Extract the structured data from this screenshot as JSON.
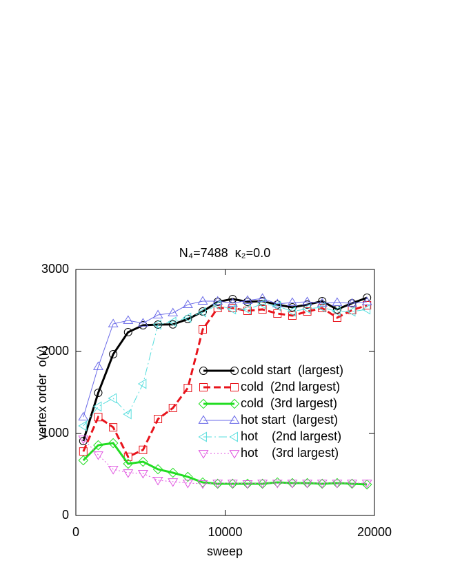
{
  "chart_data": {
    "type": "line",
    "title": "N₄=7488  κ₂=0.0",
    "xlabel": "sweep",
    "ylabel": "vertex order  o(v)",
    "x": [
      500,
      1500,
      2500,
      3500,
      4500,
      5500,
      6500,
      7500,
      8500,
      9500,
      10500,
      11500,
      12500,
      13500,
      14500,
      15500,
      16500,
      17500,
      18500,
      19500
    ],
    "xlim": [
      0,
      20000
    ],
    "xticks": [
      0,
      10000,
      20000
    ],
    "ylim": [
      0,
      3000
    ],
    "yticks": [
      0,
      1000,
      2000,
      3000
    ],
    "series": [
      {
        "name": "cold start  (largest)",
        "color": "#000000",
        "marker": "circle",
        "linestyle": "solid",
        "linewidth": 3,
        "values": [
          908,
          1496,
          1966,
          2235,
          2319,
          2328,
          2330,
          2395,
          2487,
          2605,
          2639,
          2605,
          2613,
          2571,
          2538,
          2571,
          2613,
          2513,
          2588,
          2655
        ]
      },
      {
        "name": "cold  (2nd largest)",
        "color": "#e8141c",
        "marker": "square",
        "linestyle": "dashed",
        "linewidth": 3,
        "values": [
          780,
          1200,
          1075,
          715,
          800,
          1176,
          1311,
          1555,
          2269,
          2529,
          2529,
          2496,
          2513,
          2462,
          2437,
          2487,
          2529,
          2412,
          2504,
          2563
        ]
      },
      {
        "name": "cold  (3rd largest)",
        "color": "#22dd22",
        "marker": "diamond",
        "linestyle": "solid",
        "linewidth": 3,
        "values": [
          672,
          857,
          882,
          630,
          655,
          563,
          521,
          471,
          403,
          387,
          387,
          387,
          387,
          403,
          395,
          395,
          387,
          395,
          387,
          378
        ]
      },
      {
        "name": "hot start  (largest)",
        "color": "#6a6ae8",
        "marker": "triangle-up",
        "linestyle": "solid",
        "linewidth": 1,
        "values": [
          1200,
          1815,
          2336,
          2378,
          2345,
          2445,
          2470,
          2571,
          2613,
          2613,
          2588,
          2622,
          2647,
          2580,
          2597,
          2605,
          2588,
          2597,
          2588,
          2605
        ]
      },
      {
        "name": "hot    (2nd largest)",
        "color": "#55dddd",
        "marker": "triangle-left",
        "linestyle": "dashdot",
        "linewidth": 1,
        "values": [
          1092,
          1328,
          1429,
          1235,
          1605,
          2328,
          2361,
          2412,
          2479,
          2563,
          2513,
          2513,
          2580,
          2555,
          2487,
          2521,
          2538,
          2487,
          2487,
          2513
        ]
      },
      {
        "name": "hot    (3rd largest)",
        "color": "#e055e0",
        "marker": "triangle-down",
        "linestyle": "dotted",
        "linewidth": 1,
        "values": [
          933,
          739,
          563,
          521,
          513,
          429,
          412,
          395,
          387,
          395,
          395,
          387,
          395,
          395,
          395,
          395,
          395,
          395,
          395,
          395
        ]
      }
    ]
  }
}
